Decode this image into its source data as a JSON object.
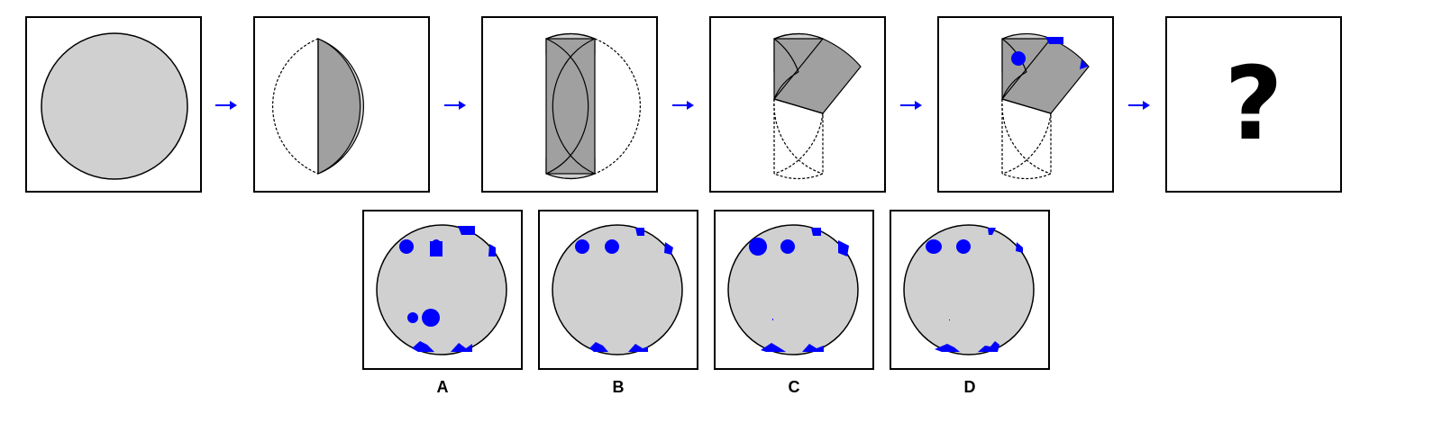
{
  "colors": {
    "paper": "#d0d0d0",
    "paper_dark": "#a0a0a0",
    "hole": "#0000ff",
    "arrow": "#0000ff",
    "outline": "#000000"
  },
  "sequence": {
    "question_mark": "?",
    "icons": [
      "circle-paper-icon",
      "fold-1-icon",
      "fold-2-icon",
      "fold-3-icon",
      "punched-icon",
      "arrow-right-icon"
    ]
  },
  "options": [
    {
      "label": "A"
    },
    {
      "label": "B"
    },
    {
      "label": "C"
    },
    {
      "label": "D"
    }
  ]
}
